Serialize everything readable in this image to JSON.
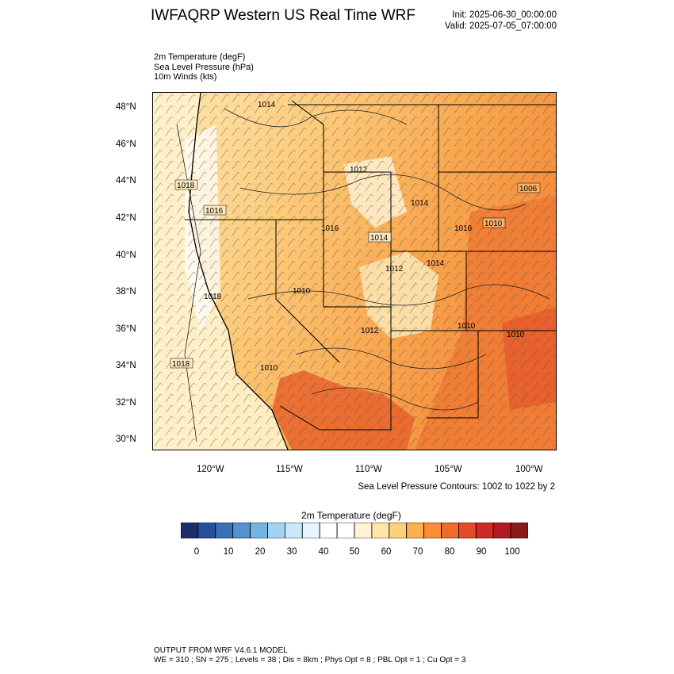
{
  "header": {
    "title": "IWFAQRP Western US Real Time WRF",
    "init": "Init: 2025-06-30_00:00:00",
    "valid": "Valid: 2025-07-05_07:00:00"
  },
  "fields": {
    "line1": "2m Temperature   (degF)",
    "line2": "Sea Level Pressure   (hPa)",
    "line3": "10m Winds   (kts)"
  },
  "map": {
    "lat_labels": [
      "48°N",
      "46°N",
      "44°N",
      "42°N",
      "40°N",
      "38°N",
      "36°N",
      "34°N",
      "32°N",
      "30°N"
    ],
    "lon_labels": [
      "120°W",
      "115°W",
      "110°W",
      "105°W",
      "100°W"
    ],
    "pressure_labels": [
      "1018",
      "1016",
      "1014",
      "1014",
      "1014",
      "1012",
      "1016",
      "1010",
      "1012",
      "1014",
      "1010",
      "1010",
      "1006",
      "1010",
      "1012",
      "1010",
      "1018",
      "1018",
      "1016"
    ],
    "lat_range": [
      29.5,
      48.9
    ],
    "lon_range": [
      -123.9,
      -98.8
    ]
  },
  "contours_note": "Sea Level Pressure Contours: 1002 to 1022 by 2",
  "colorbar": {
    "title": "2m Temperature   (degF)",
    "labels": [
      "0",
      "10",
      "20",
      "30",
      "40",
      "50",
      "60",
      "70",
      "80",
      "90",
      "100"
    ],
    "colors": [
      "#1b2f6b",
      "#26509c",
      "#3a70b9",
      "#5391cf",
      "#75b3e2",
      "#a3d3f2",
      "#c9e8f8",
      "#e8f5fc",
      "#ffffff",
      "#ffffff",
      "#fff4d8",
      "#ffe5a8",
      "#fdd07c",
      "#fcb04e",
      "#f98d36",
      "#f06a2c",
      "#e44a28",
      "#cf2b25",
      "#b31a22",
      "#8d1a1a"
    ]
  },
  "footer": {
    "line1": "OUTPUT FROM WRF V4.6.1 MODEL",
    "line2": "WE = 310 ; SN = 275 ; Levels = 38 ; Dis = 8km ; Phys Opt = 8 ; PBL Opt = 1 ; Cu Opt = 3"
  }
}
